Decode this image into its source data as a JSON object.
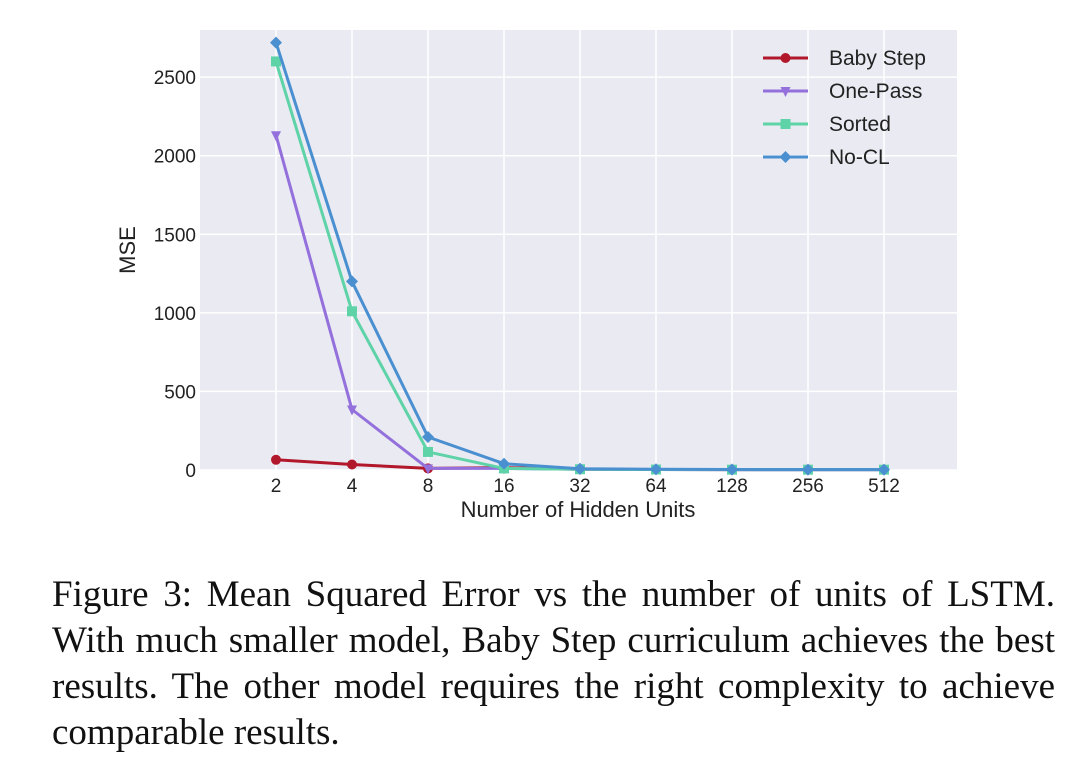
{
  "chart_data": {
    "type": "line",
    "xlabel": "Number of Hidden Units",
    "ylabel": "MSE",
    "x": [
      2,
      4,
      8,
      16,
      32,
      64,
      128,
      256,
      512
    ],
    "x_tick_labels": [
      "2",
      "4",
      "8",
      "16",
      "32",
      "64",
      "128",
      "256",
      "512"
    ],
    "x_scale": "log2",
    "ylim": [
      0,
      2800
    ],
    "y_ticks": [
      0,
      500,
      1000,
      1500,
      2000,
      2500
    ],
    "y_tick_labels": [
      "0",
      "500",
      "1000",
      "1500",
      "2000",
      "2500"
    ],
    "grid": true,
    "legend_position": "top-right",
    "series": [
      {
        "name": "Baby Step",
        "color": "#b2182b",
        "marker": "circle",
        "values": [
          65,
          35,
          10,
          15,
          5,
          3,
          2,
          2,
          2
        ]
      },
      {
        "name": "One-Pass",
        "color": "#9370db",
        "marker": "triangle-down",
        "values": [
          2130,
          385,
          10,
          10,
          5,
          3,
          2,
          2,
          2
        ]
      },
      {
        "name": "Sorted",
        "color": "#5fd3a8",
        "marker": "square",
        "values": [
          2600,
          1010,
          115,
          10,
          5,
          3,
          2,
          2,
          2
        ]
      },
      {
        "name": "No-CL",
        "color": "#4a8fd0",
        "marker": "diamond",
        "values": [
          2720,
          1200,
          210,
          40,
          8,
          5,
          3,
          2,
          2
        ]
      }
    ]
  },
  "caption": "Figure 3: Mean Squared Error vs the number of units of LSTM. With much smaller model, Baby Step curriculum achieves the best results. The other model requires the right complexity to achieve comparable results."
}
